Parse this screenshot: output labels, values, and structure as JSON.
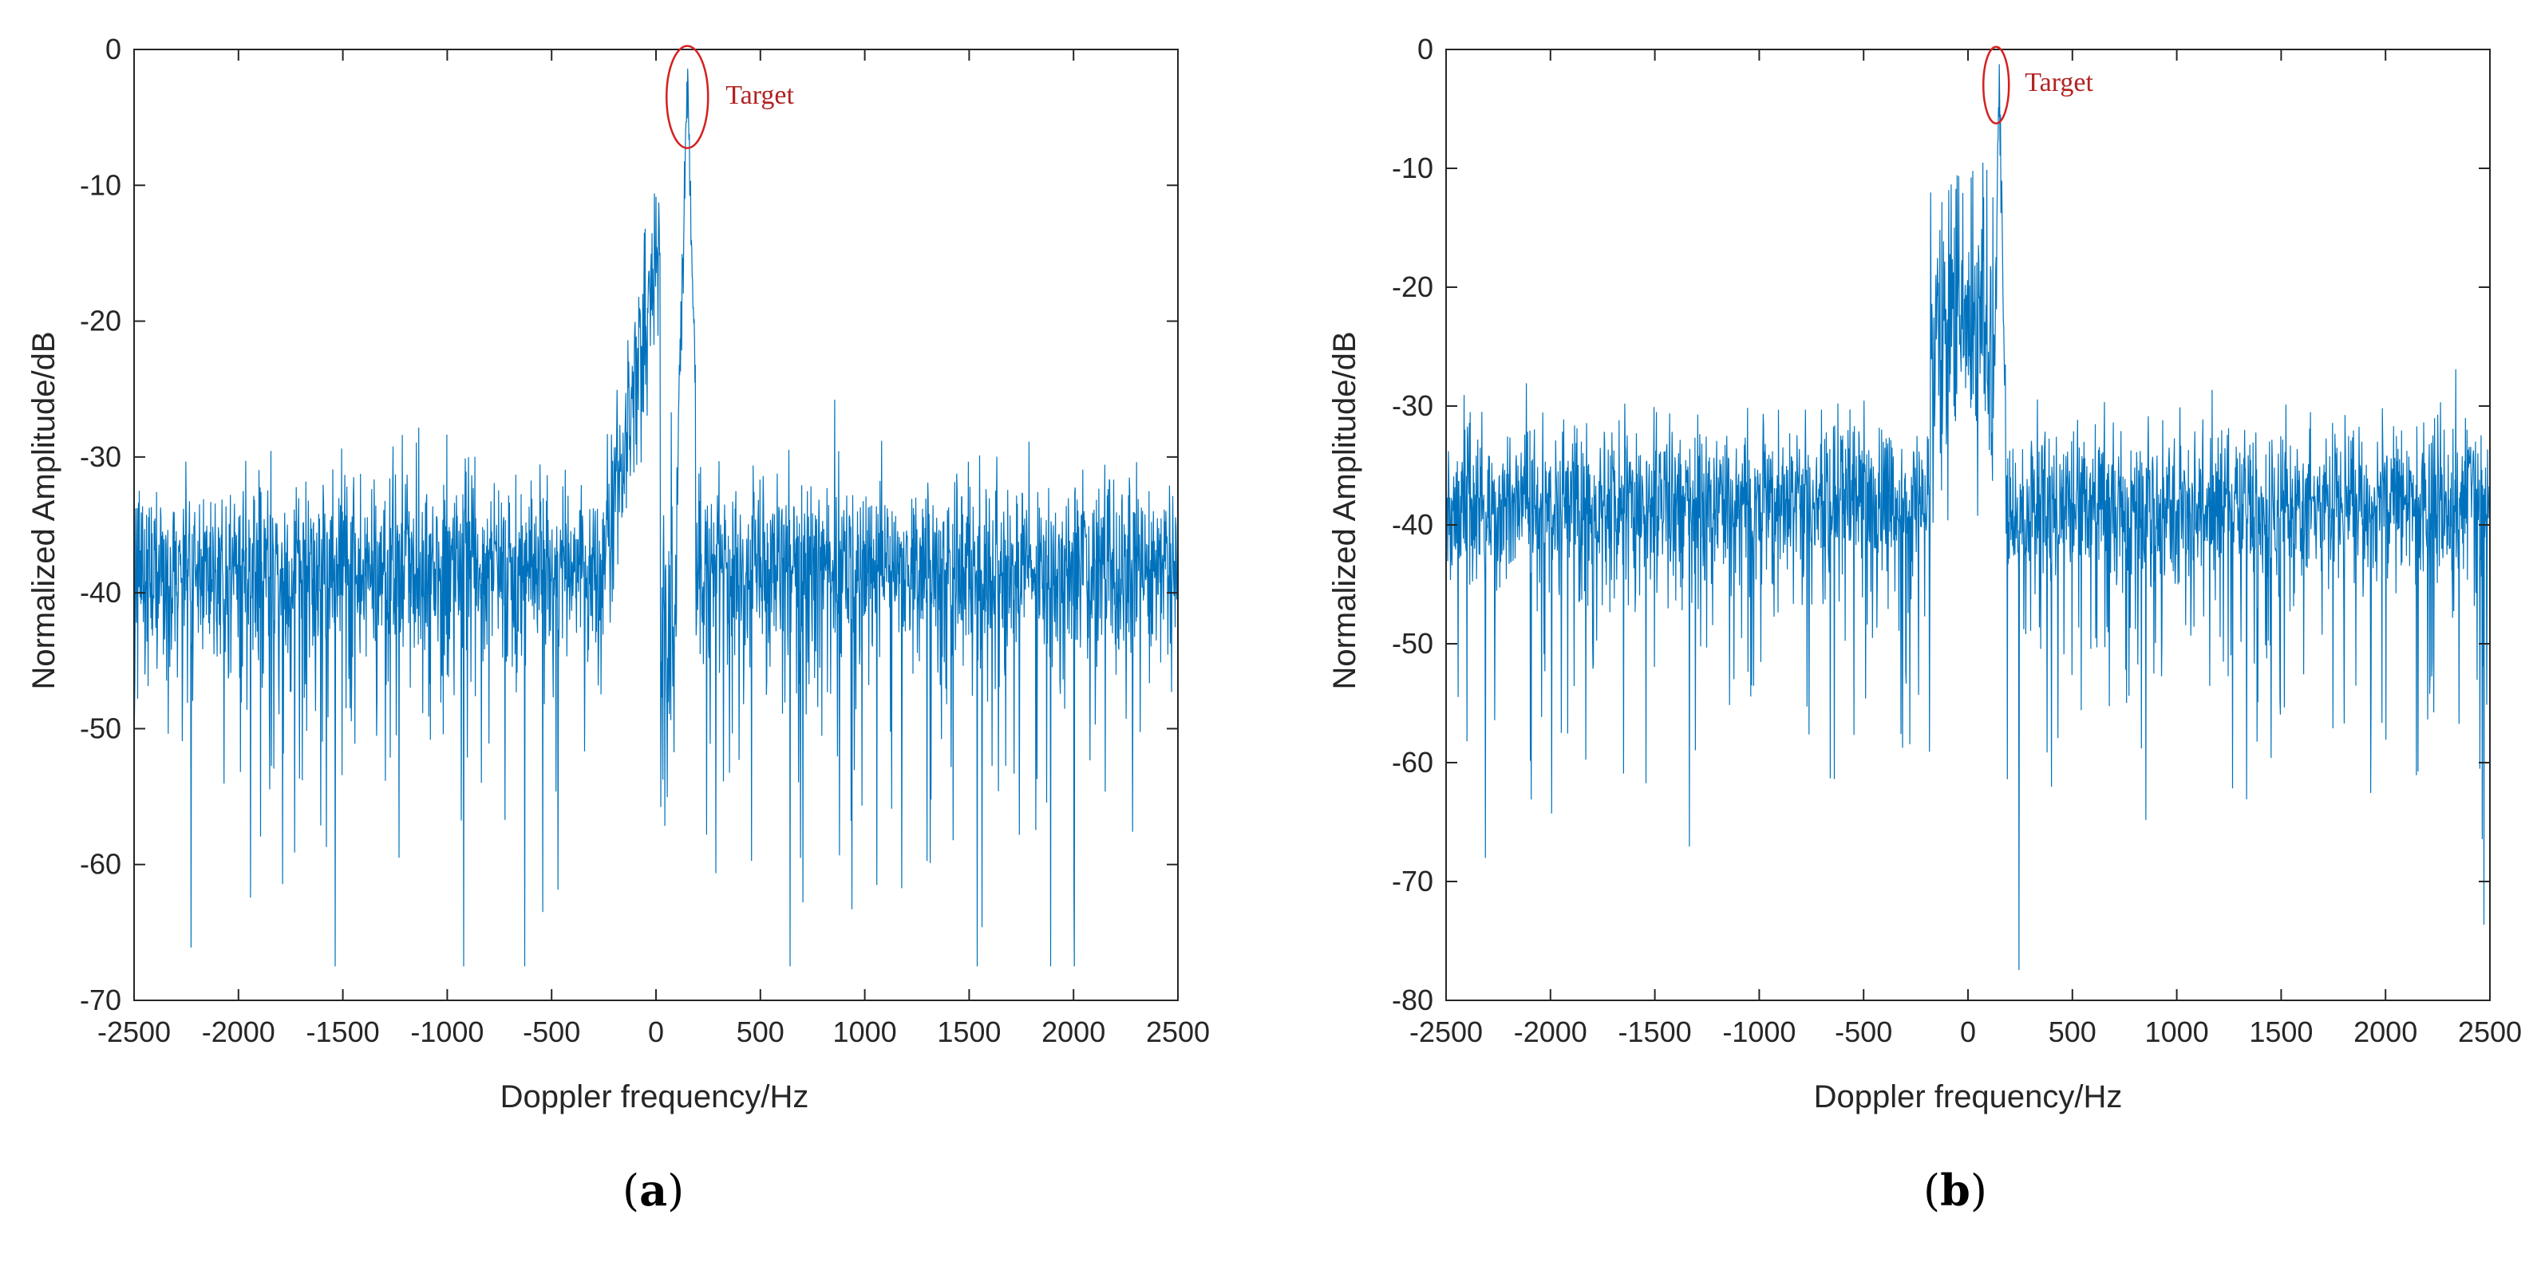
{
  "colors": {
    "trace": "#0072BD",
    "annotation": "#B22222",
    "axis": "#262626"
  },
  "chart_data": [
    {
      "type": "line",
      "panel": "a",
      "caption_open": "(",
      "caption_letter": "a",
      "caption_close": ")",
      "xlabel": "Doppler frequency/Hz",
      "ylabel": "Normalized Amplitude/dB",
      "xlim": [
        -2500,
        2500
      ],
      "ylim": [
        -70,
        0
      ],
      "xticks": [
        -2500,
        -2000,
        -1500,
        -1000,
        -500,
        0,
        500,
        1000,
        1500,
        2000,
        2500
      ],
      "yticks": [
        0,
        -10,
        -20,
        -30,
        -40,
        -50,
        -60,
        -70
      ],
      "series": [
        {
          "name": "spectrum",
          "noise_floor_db": -38,
          "clutter_center_hz": -50,
          "clutter_peak_db": -8,
          "target_hz": 150,
          "target_peak_db": 0,
          "min_db": -67.5
        }
      ],
      "annotation": {
        "text": "Target",
        "x": 150,
        "y": -3.5
      }
    },
    {
      "type": "line",
      "panel": "b",
      "caption_open": "(",
      "caption_letter": "b",
      "caption_close": ")",
      "xlabel": "Doppler frequency/Hz",
      "ylabel": "Normalized Amplitude/dB",
      "xlim": [
        -2500,
        2500
      ],
      "ylim": [
        -80,
        0
      ],
      "xticks": [
        -2500,
        -2000,
        -1500,
        -1000,
        -500,
        0,
        500,
        1000,
        1500,
        2000,
        2500
      ],
      "yticks": [
        0,
        -10,
        -20,
        -30,
        -40,
        -50,
        -60,
        -70,
        -80
      ],
      "series": [
        {
          "name": "spectrum",
          "noise_floor_db": -38,
          "clutter_center_hz": 0,
          "clutter_peak_db": -9,
          "target_hz": 150,
          "target_peak_db": 0,
          "min_db": -79.5
        }
      ],
      "annotation": {
        "text": "Target",
        "x": 150,
        "y": -3
      }
    }
  ]
}
